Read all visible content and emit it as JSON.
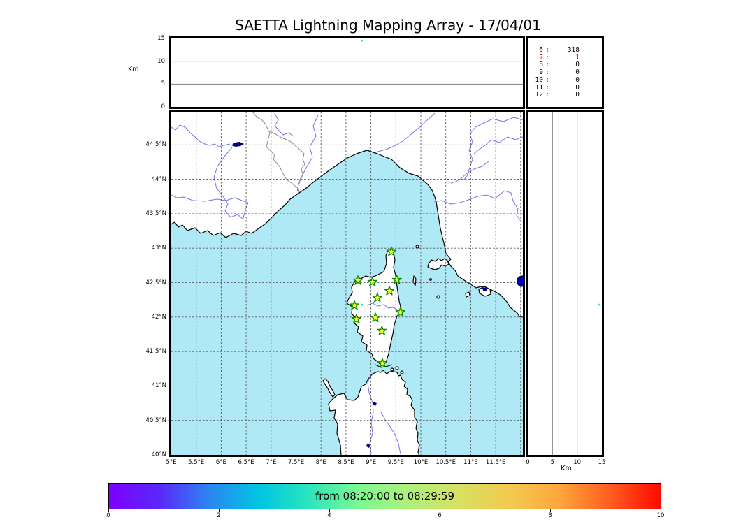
{
  "title": "SAETTA Lightning Mapping Array - 17/04/01",
  "colorbar": {
    "label": "from 08:20:00 to 08:29:59",
    "tick_labels": [
      "0",
      "2",
      "4",
      "6",
      "8",
      "10"
    ],
    "range": [
      0,
      10
    ],
    "gradient": [
      "#7f00ff",
      "#5a28f8",
      "#2b86f2",
      "#00c6e2",
      "#2ce6bc",
      "#7dfa91",
      "#aff07a",
      "#d8e060",
      "#f2ca4e",
      "#ffa53c",
      "#ff5c20",
      "#ff0a00"
    ]
  },
  "axes": {
    "alt_left": {
      "unit": "Km",
      "ticks": [
        {
          "km": 15,
          "label": "15"
        },
        {
          "km": 10,
          "label": "10"
        },
        {
          "km": 5,
          "label": "5"
        },
        {
          "km": 0,
          "label": "0"
        }
      ],
      "grid_km": [
        5,
        10
      ],
      "range_km": [
        0,
        15
      ]
    },
    "alt_bottom_right": {
      "unit": "Km",
      "ticks": [
        {
          "km": 0,
          "label": "0"
        },
        {
          "km": 5,
          "label": "5"
        },
        {
          "km": 10,
          "label": "10"
        },
        {
          "km": 15,
          "label": "15"
        }
      ],
      "grid_km": [
        5,
        10
      ],
      "range_km": [
        0,
        15
      ]
    },
    "lat": {
      "ticks": [
        {
          "deg": 44.5,
          "label": "44.5°N"
        },
        {
          "deg": 44,
          "label": "44°N"
        },
        {
          "deg": 43.5,
          "label": "43.5°N"
        },
        {
          "deg": 43,
          "label": "43°N"
        },
        {
          "deg": 42.5,
          "label": "42.5°N"
        },
        {
          "deg": 42,
          "label": "42°N"
        },
        {
          "deg": 41.5,
          "label": "41.5°N"
        },
        {
          "deg": 41,
          "label": "41°N"
        },
        {
          "deg": 40.5,
          "label": "40.5°N"
        },
        {
          "deg": 40,
          "label": "40°N"
        }
      ],
      "range": [
        40,
        44.98
      ]
    },
    "lon": {
      "ticks": [
        {
          "deg": 5,
          "label": "5°E"
        },
        {
          "deg": 5.5,
          "label": "5.5°E"
        },
        {
          "deg": 6,
          "label": "6°E"
        },
        {
          "deg": 6.5,
          "label": "6.5°E"
        },
        {
          "deg": 7,
          "label": "7°E"
        },
        {
          "deg": 7.5,
          "label": "7.5°E"
        },
        {
          "deg": 8,
          "label": "8°E"
        },
        {
          "deg": 8.5,
          "label": "8.5°E"
        },
        {
          "deg": 9,
          "label": "9°E"
        },
        {
          "deg": 9.5,
          "label": "9.5°E"
        },
        {
          "deg": 10,
          "label": "10°E"
        },
        {
          "deg": 10.5,
          "label": "10.5°E"
        },
        {
          "deg": 11,
          "label": "11°E"
        },
        {
          "deg": 11.5,
          "label": "11.5°E"
        }
      ],
      "range": [
        5,
        12.05
      ]
    }
  },
  "chart_data": {
    "type": "scatter",
    "description": "Lightning Mapping Array display: plan-view map (lon/lat), altitude-vs-longitude strip on top, altitude-vs-latitude strip on right, station-count list, and time colorbar.",
    "stations": [
      {
        "lon": 9.41,
        "lat": 42.95
      },
      {
        "lon": 8.74,
        "lat": 42.53
      },
      {
        "lon": 9.03,
        "lat": 42.51
      },
      {
        "lon": 9.52,
        "lat": 42.54
      },
      {
        "lon": 9.37,
        "lat": 42.38
      },
      {
        "lon": 9.13,
        "lat": 42.28
      },
      {
        "lon": 8.67,
        "lat": 42.17
      },
      {
        "lon": 9.59,
        "lat": 42.07
      },
      {
        "lon": 9.09,
        "lat": 41.99
      },
      {
        "lon": 8.71,
        "lat": 41.97
      },
      {
        "lon": 9.22,
        "lat": 41.8
      },
      {
        "lon": 9.23,
        "lat": 41.33
      }
    ],
    "lightning_source": {
      "lon": 8.82,
      "lat": 42.18,
      "alt_km": 14.5
    },
    "edge_marker": {
      "lon": 12.03,
      "lat": 42.52
    },
    "station_counts": {
      "rows": [
        {
          "station": "6",
          "count": "318",
          "highlight": false
        },
        {
          "station": "7",
          "count": "1",
          "highlight": true
        },
        {
          "station": "8",
          "count": "0",
          "highlight": false
        },
        {
          "station": "9",
          "count": "0",
          "highlight": false
        },
        {
          "station": "10",
          "count": "0",
          "highlight": false
        },
        {
          "station": "11",
          "count": "0",
          "highlight": false
        },
        {
          "station": "12",
          "count": "0",
          "highlight": false
        }
      ]
    }
  },
  "colors": {
    "sea": "#b0e9f6",
    "land": "#ffffff",
    "coast": "#000000",
    "river": "#7575ee",
    "lake": "#000080",
    "admin_border": "#8a8a8a",
    "map_grid": "#555555",
    "panel_grid": "#808080",
    "station_fill": "#fdff2a",
    "station_edge": "#008c00",
    "source_point": "#2fe4c8",
    "edge_marker": "#0000cd",
    "highlight_text": "#e01212"
  }
}
